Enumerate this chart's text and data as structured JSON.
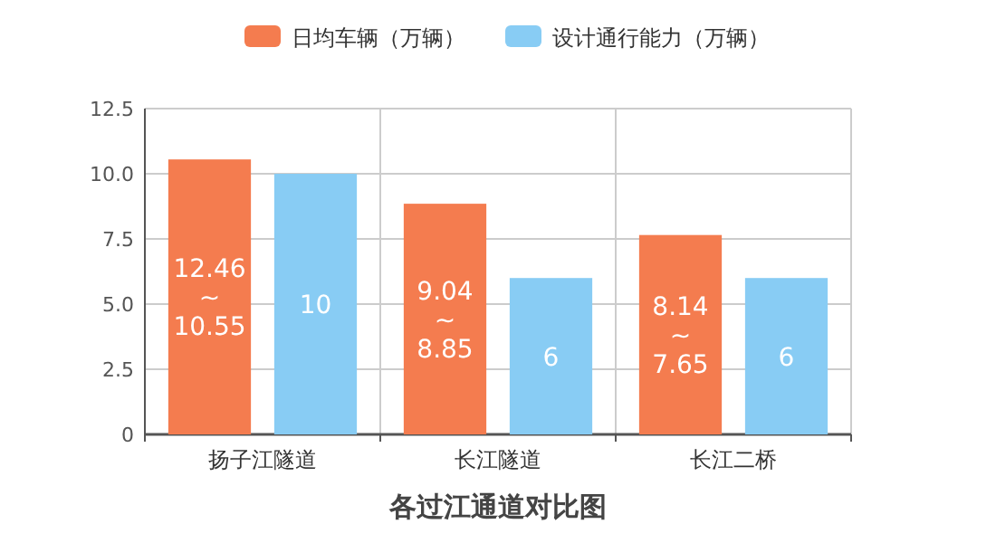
{
  "chart_data": {
    "type": "bar",
    "title": "各过江通道对比图",
    "categories": [
      "扬子江隧道",
      "长江隧道",
      "长江二桥"
    ],
    "series": [
      {
        "name": "日均车辆（万辆）",
        "color": "#f47c4f",
        "values": [
          10.55,
          8.85,
          7.65
        ],
        "value_labels": [
          "12.46\n~\n10.55",
          "9.04\n~\n8.85",
          "8.14\n~\n7.65"
        ]
      },
      {
        "name": "设计通行能力（万辆）",
        "color": "#88ccf4",
        "values": [
          10,
          6,
          6
        ],
        "value_labels": [
          "10",
          "6",
          "6"
        ]
      }
    ],
    "ylim": [
      0,
      12.5
    ],
    "yticks": [
      0,
      2.5,
      {
        "value": 5,
        "label": "5.0"
      },
      7.5,
      {
        "value": 10,
        "label": "10.0"
      },
      12.5
    ],
    "grid": true,
    "legend": "top"
  }
}
